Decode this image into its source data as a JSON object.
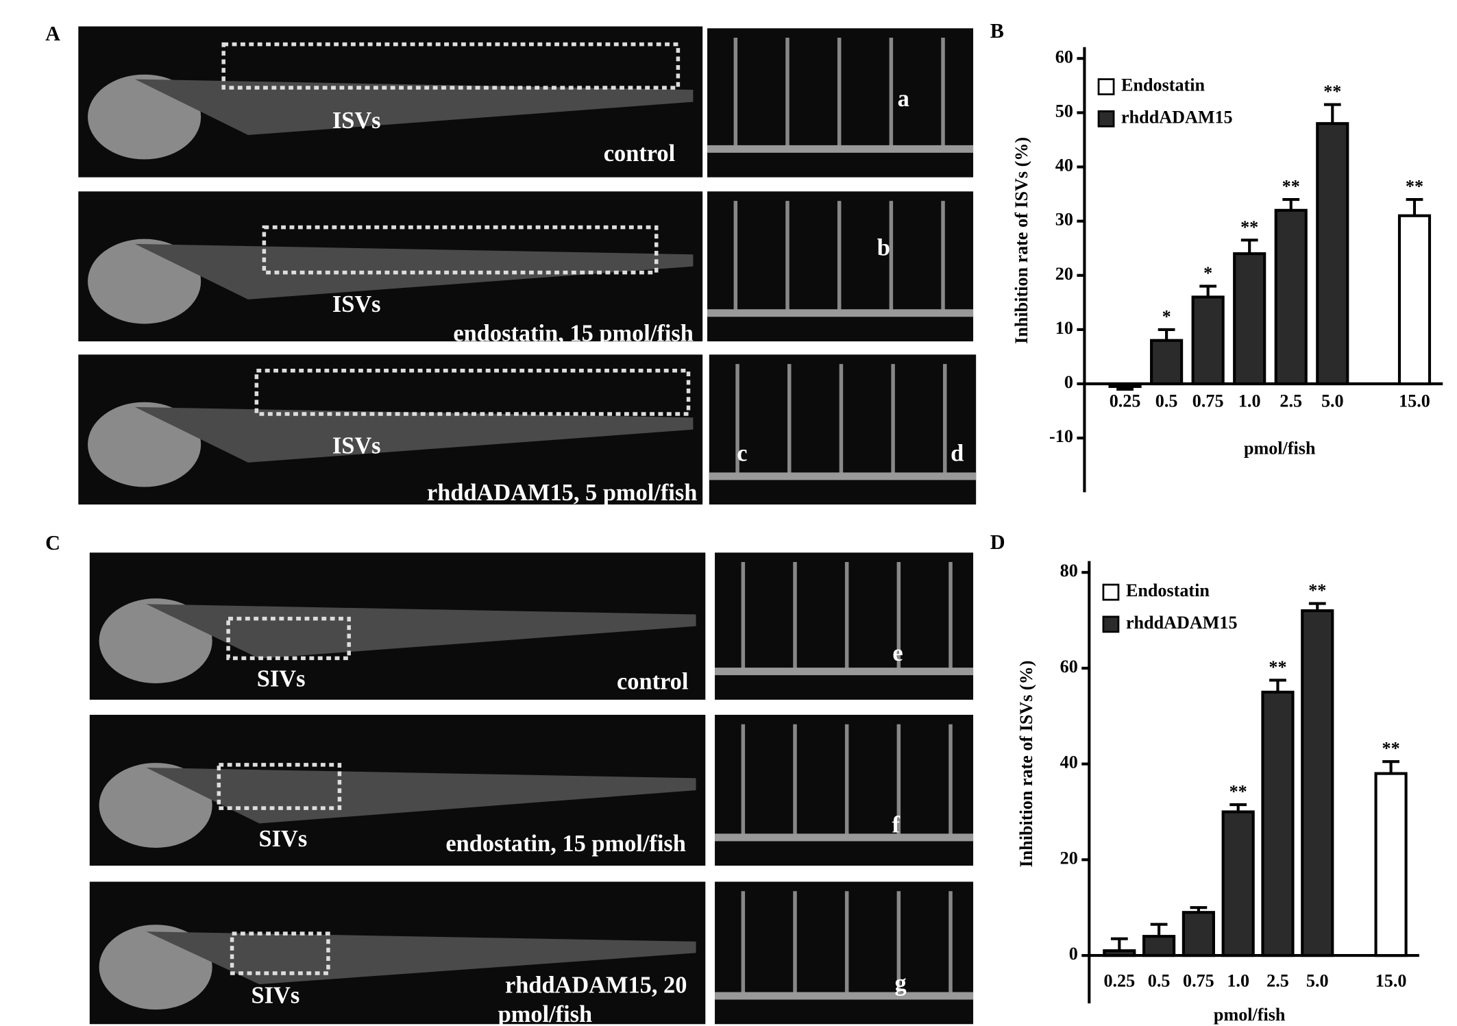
{
  "figure": {
    "panel_labels": [
      "A",
      "C"
    ],
    "images": [
      {
        "labels": [
          "ISVs",
          "control"
        ]
      },
      {
        "labels": [
          "a"
        ]
      },
      {
        "labels": [
          "ISVs",
          "endostatin, 15 pmol/fish"
        ]
      },
      {
        "labels": [
          "b"
        ]
      },
      {
        "labels": [
          "ISVs",
          "rhddADAM15, 5 pmol/fish"
        ]
      },
      {
        "labels": [
          "c",
          "d"
        ]
      },
      {
        "labels": [
          "SIVs",
          "control"
        ]
      },
      {
        "labels": [
          "e"
        ]
      },
      {
        "labels": [
          "SIVs",
          "endostatin, 15 pmol/fish"
        ]
      },
      {
        "labels": [
          "f"
        ]
      },
      {
        "labels": [
          "SIVs",
          "rhddADAM15, 20",
          "pmol/fish"
        ]
      },
      {
        "labels": [
          "g"
        ]
      }
    ]
  },
  "chart_data": [
    {
      "type": "bar",
      "panel": "B",
      "y_label": "Inhibition rate of ISVs (%)",
      "x_label": "pmol/fish",
      "categories": [
        "0.25",
        "0.5",
        "0.75",
        "1.0",
        "2.5",
        "5.0",
        "15.0"
      ],
      "ylim": [
        -20,
        60
      ],
      "yticks": [
        -10,
        0,
        10,
        20,
        30,
        40,
        50,
        60
      ],
      "series": [
        {
          "name": "Endostatin",
          "color": "#ffffff",
          "values": [
            null,
            null,
            null,
            null,
            null,
            null,
            31
          ],
          "errors": [
            null,
            null,
            null,
            null,
            null,
            null,
            3
          ],
          "annotations": [
            null,
            null,
            null,
            null,
            null,
            null,
            "**"
          ]
        },
        {
          "name": "rhddADAM15",
          "color": "#2b2b2b",
          "values": [
            -0.5,
            8,
            16,
            24,
            32,
            48,
            null
          ],
          "errors": [
            0.5,
            2,
            2,
            2.5,
            2,
            3.5,
            null
          ],
          "annotations": [
            null,
            "*",
            "*",
            "**",
            "**",
            "**",
            null
          ]
        }
      ]
    },
    {
      "type": "bar",
      "panel": "D",
      "y_label": "Inhibition rate of ISVs (%)",
      "x_label": "pmol/fish",
      "categories": [
        "0.25",
        "0.5",
        "0.75",
        "1.0",
        "2.5",
        "5.0",
        "15.0"
      ],
      "ylim": [
        -10,
        80
      ],
      "yticks": [
        0,
        20,
        40,
        60,
        80
      ],
      "series": [
        {
          "name": "Endostatin",
          "color": "#ffffff",
          "values": [
            null,
            null,
            null,
            null,
            null,
            null,
            38
          ],
          "errors": [
            null,
            null,
            null,
            null,
            null,
            null,
            2.5
          ],
          "annotations": [
            null,
            null,
            null,
            null,
            null,
            null,
            "**"
          ]
        },
        {
          "name": "rhddADAM15",
          "color": "#2b2b2b",
          "values": [
            1,
            4,
            9,
            30,
            55,
            72,
            null
          ],
          "errors": [
            2.5,
            2.5,
            1,
            1.5,
            2.5,
            1.5,
            null
          ],
          "annotations": [
            null,
            null,
            null,
            "**",
            "**",
            "**",
            null
          ]
        }
      ]
    }
  ]
}
